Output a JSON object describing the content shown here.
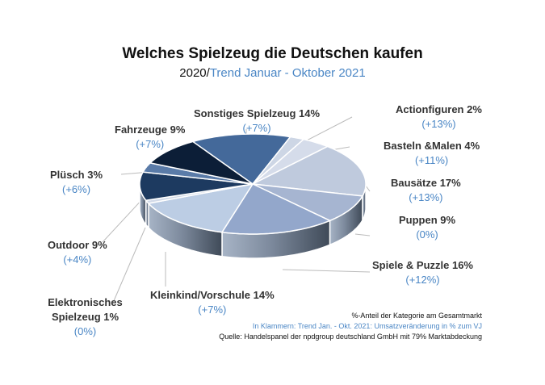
{
  "chart_data": {
    "type": "pie",
    "title": "Welches Spielzeug die Deutschen kaufen",
    "subtitle_year": "2020/",
    "subtitle_trend": "Trend Januar - Oktober 2021",
    "slices": [
      {
        "label": "Sonstiges Spielzeug 14%",
        "name": "Sonstiges Spielzeug",
        "value": 14,
        "trend": "(+7%)",
        "color": "#44699a"
      },
      {
        "label": "Actionfiguren 2%",
        "name": "Actionfiguren",
        "value": 2,
        "trend": "(+13%)",
        "color": "#cdd6e5"
      },
      {
        "label": "Basteln &Malen 4%",
        "name": "Basteln &Malen",
        "value": 4,
        "trend": "(+11%)",
        "color": "#d5dcea"
      },
      {
        "label": "Bausätze 17%",
        "name": "Bausätze",
        "value": 17,
        "trend": "(+13%)",
        "color": "#bfcadd"
      },
      {
        "label": "Puppen 9%",
        "name": "Puppen",
        "value": 9,
        "trend": "(0%)",
        "color": "#a6b5d1"
      },
      {
        "label": "Spiele & Puzzle 16%",
        "name": "Spiele & Puzzle",
        "value": 16,
        "trend": "(+12%)",
        "color": "#93a7cb"
      },
      {
        "label": "Kleinkind/Vorschule 14%",
        "name": "Kleinkind/Vorschule",
        "value": 14,
        "trend": "(+7%)",
        "color": "#bccde4"
      },
      {
        "label": "Elektronisches Spielzeug 1%",
        "name": "Elektronisches Spielzeug",
        "value": 1,
        "trend": "(0%)",
        "color": "#d2dae8"
      },
      {
        "label": "Outdoor 9%",
        "name": "Outdoor",
        "value": 9,
        "trend": "(+4%)",
        "color": "#1d3a60"
      },
      {
        "label": "Plüsch  3%",
        "name": "Plüsch",
        "value": 3,
        "trend": "(+6%)",
        "color": "#5a7ba8"
      },
      {
        "label": "Fahrzeuge 9%",
        "name": "Fahrzeuge",
        "value": 9,
        "trend": "(+7%)",
        "color": "#0c1e37"
      }
    ],
    "start_angle_deg": -32,
    "direction": "clockwise",
    "style": "3d"
  },
  "footnotes": {
    "line1": "%-Anteil der Kategorie am Gesamtmarkt",
    "line2": "In Klammern: Trend Jan. - Okt. 2021: Umsatzveränderung in % zum VJ",
    "line3": "Quelle: Handelspanel der npdgroup deutschland GmbH mit 79% Marktabdeckung"
  },
  "colors": {
    "trend_text": "#4a86c5",
    "side_dark": "#3f4a58",
    "side_light": "#a7b4c6"
  }
}
